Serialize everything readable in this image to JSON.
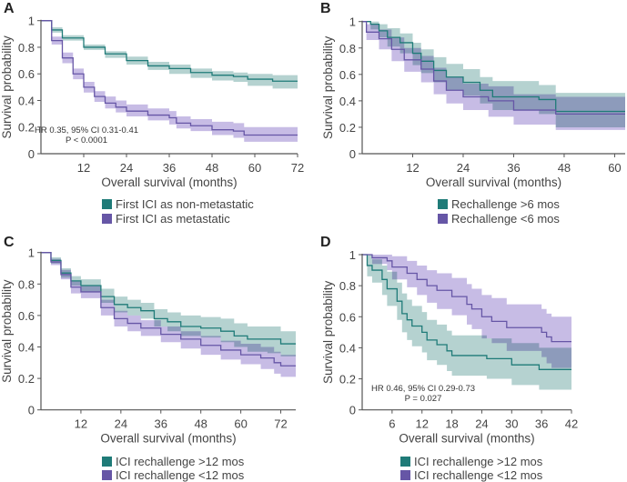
{
  "colors": {
    "teal_line": "#1f7b78",
    "teal_band": "#9cc3c0",
    "purple_line": "#6656a6",
    "purple_band": "#b4a6dc",
    "axis": "#555555"
  },
  "chart_data": [
    {
      "type": "line",
      "panel": "A",
      "xlabel": "Overall survival (months)",
      "ylabel": "Survival probability",
      "xlim": [
        0,
        72
      ],
      "ylim": [
        0,
        1
      ],
      "xticks": [
        12,
        24,
        36,
        48,
        60,
        72
      ],
      "yticks": [
        0,
        0.2,
        0.4,
        0.6,
        0.8,
        1
      ],
      "ytick_labels": [
        "0",
        "0.2",
        "0.4",
        "0.6",
        "0.8",
        "1"
      ],
      "annotation": [
        "HR 0.35, 95% CI 0.31-0.41",
        "P < 0.0001"
      ],
      "series": [
        {
          "name": "First ICI as non-metastatic",
          "color": "teal",
          "points_t_s_lo_hi": [
            [
              0,
              1,
              1,
              1
            ],
            [
              3,
              0.93,
              0.91,
              0.95
            ],
            [
              6,
              0.87,
              0.85,
              0.89
            ],
            [
              12,
              0.8,
              0.78,
              0.82
            ],
            [
              18,
              0.75,
              0.72,
              0.77
            ],
            [
              24,
              0.7,
              0.67,
              0.73
            ],
            [
              30,
              0.66,
              0.63,
              0.69
            ],
            [
              36,
              0.64,
              0.6,
              0.67
            ],
            [
              42,
              0.61,
              0.57,
              0.64
            ],
            [
              48,
              0.59,
              0.55,
              0.62
            ],
            [
              54,
              0.58,
              0.54,
              0.61
            ],
            [
              58,
              0.56,
              0.51,
              0.6
            ],
            [
              65,
              0.545,
              0.49,
              0.59
            ],
            [
              72,
              0.545,
              0.49,
              0.59
            ]
          ]
        },
        {
          "name": "First ICI as metastatic",
          "color": "purple",
          "points_t_s_lo_hi": [
            [
              0,
              1,
              1,
              1
            ],
            [
              3,
              0.85,
              0.82,
              0.88
            ],
            [
              6,
              0.72,
              0.68,
              0.76
            ],
            [
              9,
              0.6,
              0.56,
              0.64
            ],
            [
              12,
              0.5,
              0.46,
              0.54
            ],
            [
              15,
              0.43,
              0.39,
              0.47
            ],
            [
              18,
              0.38,
              0.34,
              0.43
            ],
            [
              21,
              0.35,
              0.31,
              0.4
            ],
            [
              24,
              0.32,
              0.28,
              0.37
            ],
            [
              30,
              0.29,
              0.25,
              0.34
            ],
            [
              36,
              0.27,
              0.22,
              0.32
            ],
            [
              38,
              0.23,
              0.19,
              0.28
            ],
            [
              42,
              0.21,
              0.17,
              0.26
            ],
            [
              48,
              0.18,
              0.14,
              0.24
            ],
            [
              54,
              0.17,
              0.12,
              0.23
            ],
            [
              57,
              0.14,
              0.09,
              0.2
            ],
            [
              72,
              0.14,
              0.09,
              0.2
            ]
          ]
        }
      ]
    },
    {
      "type": "line",
      "panel": "B",
      "xlabel": "Overall survival (months)",
      "ylabel": "Survival probability",
      "xlim": [
        0,
        62.5
      ],
      "ylim": [
        0,
        1
      ],
      "xticks": [
        12,
        24,
        36,
        48,
        60
      ],
      "yticks": [
        0,
        0.2,
        0.4,
        0.6,
        0.8,
        1
      ],
      "ytick_labels": [
        "0",
        "0.2",
        "0.4",
        "0.6",
        "0.8",
        "1"
      ],
      "annotation": [],
      "series": [
        {
          "name": "Rechallenge >6 mos",
          "color": "teal",
          "points_t_s_lo_hi": [
            [
              0,
              1,
              1,
              1
            ],
            [
              2,
              0.98,
              0.94,
              1
            ],
            [
              4,
              0.93,
              0.88,
              0.98
            ],
            [
              6,
              0.88,
              0.81,
              0.95
            ],
            [
              9,
              0.84,
              0.76,
              0.91
            ],
            [
              12,
              0.76,
              0.67,
              0.84
            ],
            [
              14,
              0.7,
              0.61,
              0.79
            ],
            [
              17,
              0.63,
              0.54,
              0.73
            ],
            [
              20,
              0.58,
              0.48,
              0.68
            ],
            [
              24,
              0.54,
              0.44,
              0.64
            ],
            [
              28,
              0.48,
              0.38,
              0.58
            ],
            [
              31,
              0.43,
              0.33,
              0.55
            ],
            [
              42,
              0.41,
              0.3,
              0.52
            ],
            [
              46,
              0.32,
              0.2,
              0.46
            ],
            [
              62.5,
              0.32,
              0.18,
              0.46
            ]
          ]
        },
        {
          "name": "Rechallenge <6 mos",
          "color": "purple",
          "points_t_s_lo_hi": [
            [
              0,
              1,
              1,
              1
            ],
            [
              1,
              0.92,
              0.86,
              0.98
            ],
            [
              4,
              0.87,
              0.79,
              0.94
            ],
            [
              7,
              0.79,
              0.7,
              0.88
            ],
            [
              10,
              0.71,
              0.62,
              0.8
            ],
            [
              14,
              0.64,
              0.54,
              0.74
            ],
            [
              17,
              0.55,
              0.45,
              0.65
            ],
            [
              20,
              0.48,
              0.38,
              0.58
            ],
            [
              24,
              0.43,
              0.33,
              0.53
            ],
            [
              30,
              0.4,
              0.28,
              0.51
            ],
            [
              36,
              0.33,
              0.22,
              0.45
            ],
            [
              46,
              0.3,
              0.18,
              0.43
            ],
            [
              62.5,
              0.3,
              0.18,
              0.43
            ]
          ]
        }
      ]
    },
    {
      "type": "line",
      "panel": "C",
      "xlabel": "Overall survival (months)",
      "ylabel": "Survival probability",
      "xlim": [
        0,
        76.5
      ],
      "ylim": [
        0,
        1
      ],
      "xticks": [
        12,
        24,
        36,
        48,
        60,
        72
      ],
      "yticks": [
        0,
        0.2,
        0.4,
        0.6,
        0.8,
        1
      ],
      "ytick_labels": [
        "0",
        "0.2",
        "0.4",
        "0.6",
        "0.8",
        "1"
      ],
      "annotation": [],
      "series": [
        {
          "name": "ICI rechallenge >12 mos",
          "color": "teal",
          "points_t_s_lo_hi": [
            [
              0,
              1,
              1,
              1
            ],
            [
              3,
              0.95,
              0.93,
              0.97
            ],
            [
              6,
              0.87,
              0.84,
              0.9
            ],
            [
              9,
              0.82,
              0.79,
              0.85
            ],
            [
              12,
              0.79,
              0.75,
              0.83
            ],
            [
              18,
              0.72,
              0.68,
              0.77
            ],
            [
              22,
              0.67,
              0.62,
              0.72
            ],
            [
              26,
              0.65,
              0.6,
              0.7
            ],
            [
              30,
              0.63,
              0.58,
              0.68
            ],
            [
              34,
              0.58,
              0.53,
              0.64
            ],
            [
              38,
              0.56,
              0.5,
              0.62
            ],
            [
              42,
              0.53,
              0.47,
              0.6
            ],
            [
              48,
              0.52,
              0.46,
              0.59
            ],
            [
              54,
              0.5,
              0.43,
              0.58
            ],
            [
              58,
              0.47,
              0.4,
              0.55
            ],
            [
              62,
              0.45,
              0.37,
              0.53
            ],
            [
              68,
              0.45,
              0.36,
              0.53
            ],
            [
              72,
              0.42,
              0.34,
              0.5
            ],
            [
              76.5,
              0.42,
              0.34,
              0.5
            ]
          ]
        },
        {
          "name": "ICI rechallenge <12 mos",
          "color": "purple",
          "points_t_s_lo_hi": [
            [
              0,
              1,
              1,
              1
            ],
            [
              3,
              0.94,
              0.92,
              0.96
            ],
            [
              6,
              0.86,
              0.83,
              0.89
            ],
            [
              9,
              0.78,
              0.74,
              0.82
            ],
            [
              12,
              0.75,
              0.71,
              0.79
            ],
            [
              18,
              0.65,
              0.6,
              0.7
            ],
            [
              22,
              0.58,
              0.53,
              0.63
            ],
            [
              26,
              0.55,
              0.5,
              0.6
            ],
            [
              30,
              0.52,
              0.47,
              0.57
            ],
            [
              36,
              0.48,
              0.43,
              0.53
            ],
            [
              42,
              0.45,
              0.39,
              0.5
            ],
            [
              48,
              0.41,
              0.35,
              0.47
            ],
            [
              54,
              0.38,
              0.32,
              0.44
            ],
            [
              60,
              0.35,
              0.29,
              0.42
            ],
            [
              66,
              0.33,
              0.26,
              0.4
            ],
            [
              70,
              0.3,
              0.23,
              0.37
            ],
            [
              72,
              0.28,
              0.21,
              0.35
            ],
            [
              76.5,
              0.28,
              0.21,
              0.35
            ]
          ]
        }
      ]
    },
    {
      "type": "line",
      "panel": "D",
      "xlabel": "Overall survival (months)",
      "ylabel": "Survival probability",
      "xlim": [
        0,
        42
      ],
      "ylim": [
        0,
        1
      ],
      "xticks": [
        6,
        12,
        18,
        24,
        30,
        36,
        42
      ],
      "yticks": [
        0,
        0.2,
        0.4,
        0.6,
        0.8,
        1
      ],
      "ytick_labels": [
        "0",
        "0.2",
        "0.4",
        "0.6",
        "0.8",
        "1"
      ],
      "annotation": [
        "HR 0.46, 95% CI 0.29-0.73",
        "P = 0.027"
      ],
      "series": [
        {
          "name": "ICI rechallenge >12 mos",
          "color": "teal",
          "points_t_s_lo_hi": [
            [
              0,
              1,
              1,
              1
            ],
            [
              1,
              0.93,
              0.86,
              1
            ],
            [
              2,
              0.9,
              0.82,
              0.97
            ],
            [
              4,
              0.84,
              0.74,
              0.93
            ],
            [
              5,
              0.78,
              0.67,
              0.89
            ],
            [
              7,
              0.7,
              0.58,
              0.82
            ],
            [
              8,
              0.62,
              0.5,
              0.75
            ],
            [
              9,
              0.58,
              0.45,
              0.71
            ],
            [
              10,
              0.54,
              0.41,
              0.67
            ],
            [
              12,
              0.5,
              0.37,
              0.63
            ],
            [
              13,
              0.45,
              0.32,
              0.58
            ],
            [
              15,
              0.42,
              0.29,
              0.55
            ],
            [
              17,
              0.38,
              0.25,
              0.51
            ],
            [
              18,
              0.35,
              0.22,
              0.48
            ],
            [
              25,
              0.33,
              0.2,
              0.46
            ],
            [
              30,
              0.29,
              0.16,
              0.43
            ],
            [
              35.5,
              0.26,
              0.13,
              0.4
            ],
            [
              42,
              0.26,
              0.13,
              0.4
            ]
          ]
        },
        {
          "name": "ICI rechallenge <12 mos",
          "color": "purple",
          "points_t_s_lo_hi": [
            [
              0,
              1,
              1,
              1
            ],
            [
              2,
              0.98,
              0.94,
              1
            ],
            [
              5,
              0.96,
              0.9,
              1
            ],
            [
              6,
              0.92,
              0.84,
              0.99
            ],
            [
              9,
              0.88,
              0.79,
              0.96
            ],
            [
              11,
              0.84,
              0.74,
              0.93
            ],
            [
              13,
              0.8,
              0.69,
              0.9
            ],
            [
              15,
              0.77,
              0.65,
              0.88
            ],
            [
              18,
              0.73,
              0.61,
              0.85
            ],
            [
              21,
              0.68,
              0.55,
              0.81
            ],
            [
              22,
              0.65,
              0.52,
              0.78
            ],
            [
              24,
              0.6,
              0.46,
              0.74
            ],
            [
              26,
              0.57,
              0.43,
              0.72
            ],
            [
              29,
              0.53,
              0.38,
              0.68
            ],
            [
              36,
              0.5,
              0.34,
              0.65
            ],
            [
              37,
              0.47,
              0.3,
              0.62
            ],
            [
              38,
              0.44,
              0.27,
              0.6
            ],
            [
              42,
              0.44,
              0.27,
              0.6
            ]
          ]
        }
      ]
    }
  ]
}
